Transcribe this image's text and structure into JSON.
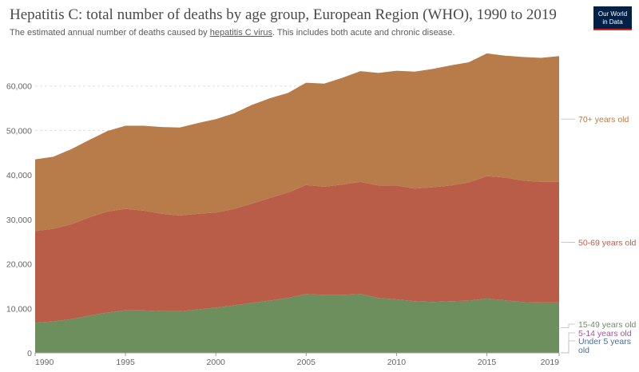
{
  "title": "Hepatitis C: total number of deaths by age group, European Region (WHO), 1990 to 2019",
  "subtitle": {
    "before": "The estimated annual number of deaths caused by ",
    "link": "hepatitis C virus",
    "after": ". This includes both acute and chronic disease."
  },
  "logo": {
    "line1": "Our World",
    "line2": "in Data"
  },
  "chart_data": {
    "type": "area",
    "stacked": true,
    "x": [
      1990,
      1991,
      1992,
      1993,
      1994,
      1995,
      1996,
      1997,
      1998,
      1999,
      2000,
      2001,
      2002,
      2003,
      2004,
      2005,
      2006,
      2007,
      2008,
      2009,
      2010,
      2011,
      2012,
      2013,
      2014,
      2015,
      2016,
      2017,
      2018,
      2019
    ],
    "series": [
      {
        "name": "Under 5 years old",
        "color": "#4c6a9c",
        "values": [
          60,
          55,
          50,
          45,
          42,
          40,
          38,
          36,
          34,
          32,
          30,
          28,
          27,
          26,
          25,
          24,
          23,
          22,
          21,
          20,
          19,
          18,
          17,
          16,
          15,
          14,
          13,
          13,
          12,
          12
        ]
      },
      {
        "name": "5-14 years old",
        "color": "#a2559c",
        "values": [
          40,
          38,
          36,
          34,
          32,
          30,
          29,
          28,
          27,
          26,
          25,
          24,
          23,
          22,
          21,
          20,
          19,
          18,
          17,
          16,
          15,
          15,
          14,
          14,
          13,
          13,
          12,
          12,
          11,
          11
        ]
      },
      {
        "name": "15-49 years old",
        "color": "#6d8f5e",
        "values": [
          6700,
          7000,
          7500,
          8300,
          9000,
          9500,
          9500,
          9300,
          9300,
          9700,
          10100,
          10600,
          11200,
          11700,
          12300,
          13200,
          13000,
          13000,
          13200,
          12300,
          12000,
          11600,
          11400,
          11600,
          11700,
          12200,
          11800,
          11400,
          11300,
          11300
        ]
      },
      {
        "name": "50-69 years old",
        "color": "#b95d48",
        "values": [
          20600,
          20800,
          21300,
          22100,
          22700,
          22800,
          22400,
          21900,
          21500,
          21500,
          21400,
          21700,
          22300,
          23100,
          23700,
          24500,
          24300,
          24800,
          25200,
          25300,
          25600,
          25300,
          25800,
          26000,
          26600,
          27500,
          27600,
          27300,
          27100,
          27100
        ]
      },
      {
        "name": "70+ years old",
        "color": "#b87b4a",
        "values": [
          16100,
          16200,
          16900,
          17400,
          18100,
          18700,
          19100,
          19500,
          19800,
          20400,
          21000,
          21500,
          22200,
          22400,
          22400,
          23000,
          23200,
          24000,
          24900,
          25300,
          25800,
          26300,
          26600,
          27000,
          27000,
          27600,
          27400,
          27800,
          27900,
          28300
        ]
      }
    ],
    "ylim": [
      0,
      70000
    ],
    "yticks": [
      0,
      10000,
      20000,
      30000,
      40000,
      50000,
      60000
    ],
    "ytick_labels": [
      "0",
      "10,000",
      "20,000",
      "30,000",
      "40,000",
      "50,000",
      "60,000"
    ],
    "xticks": [
      1990,
      1995,
      2000,
      2005,
      2010,
      2015,
      2019
    ],
    "grid": "horizontal dashed",
    "legend": "right, inline labels"
  }
}
